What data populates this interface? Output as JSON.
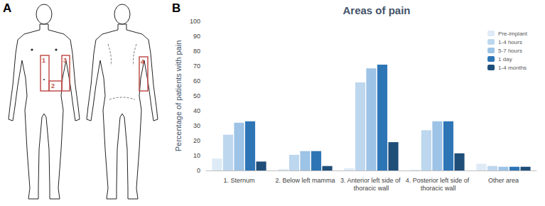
{
  "panel_labels": [
    "A",
    "B"
  ],
  "diagram": {
    "regions": [
      {
        "label": "1"
      },
      {
        "label": "2"
      },
      {
        "label": "3"
      },
      {
        "label": "4"
      }
    ]
  },
  "chart_data": {
    "type": "bar",
    "title": "Areas of pain",
    "y_label": "Percentage of patients with pain",
    "categories": [
      "1. Sternum",
      "2. Below left mamma",
      "3. Anterior left side of thoracic wall",
      "4. Posterior left side of thoracic wall",
      "Other area"
    ],
    "series": [
      {
        "name": "Pre-implant",
        "color": "#deebf7",
        "values": [
          8,
          1,
          1.5,
          0.5,
          4.5
        ]
      },
      {
        "name": "1-4 hours",
        "color": "#bdd7ee",
        "values": [
          24,
          10.5,
          59,
          27,
          3
        ]
      },
      {
        "name": "5-7 hours",
        "color": "#9dc3e6",
        "values": [
          32,
          13,
          68.5,
          33,
          2.5
        ]
      },
      {
        "name": "1 day",
        "color": "#2e75b6",
        "values": [
          33,
          13,
          71,
          33,
          2.5
        ]
      },
      {
        "name": "1-4 months",
        "color": "#1f4e79",
        "values": [
          6,
          3,
          19,
          11.5,
          2.5
        ]
      }
    ],
    "ylim": [
      0,
      100
    ],
    "yticks": [
      0,
      10,
      20,
      30,
      40,
      50,
      60,
      70,
      80,
      90,
      100
    ],
    "grid": false,
    "legend": "top-right"
  }
}
